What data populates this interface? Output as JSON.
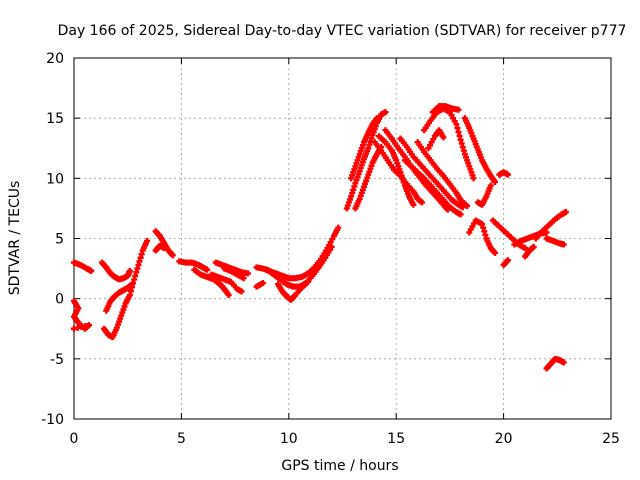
{
  "chart_data": {
    "type": "scatter",
    "title": "Day 166 of 2025, Sidereal Day-to-day VTEC variation (SDTVAR) for receiver p777",
    "xlabel": "GPS time / hours",
    "ylabel": "SDTVAR / TECUs",
    "xlim": [
      0,
      25
    ],
    "ylim": [
      -10,
      20
    ],
    "xticks": [
      0,
      5,
      10,
      15,
      20,
      25
    ],
    "yticks": [
      -10,
      -5,
      0,
      5,
      10,
      15,
      20
    ],
    "grid": true,
    "legend": "none",
    "marker": "+",
    "series": [
      {
        "name": "arc-early-upper",
        "color": "#ff0000",
        "points": [
          [
            0.0,
            3.0
          ],
          [
            0.3,
            2.8
          ],
          [
            0.6,
            2.5
          ],
          [
            0.8,
            2.3
          ]
        ]
      },
      {
        "name": "arc-early-lower",
        "color": "#ff0000",
        "points": [
          [
            0.0,
            -0.2
          ],
          [
            0.2,
            -0.8
          ],
          [
            0.0,
            -1.5
          ],
          [
            0.2,
            -2.0
          ],
          [
            0.5,
            -2.5
          ],
          [
            0.7,
            -2.2
          ],
          [
            0.0,
            -2.5
          ]
        ]
      },
      {
        "name": "arc-1",
        "color": "#ff0000",
        "points": [
          [
            1.3,
            3.0
          ],
          [
            1.5,
            2.6
          ],
          [
            1.7,
            2.1
          ],
          [
            1.9,
            1.8
          ],
          [
            2.1,
            1.6
          ],
          [
            2.3,
            1.7
          ],
          [
            2.5,
            1.9
          ],
          [
            2.6,
            2.3
          ]
        ]
      },
      {
        "name": "arc-2",
        "color": "#ff0000",
        "points": [
          [
            1.4,
            -2.5
          ],
          [
            1.6,
            -3.0
          ],
          [
            1.8,
            -3.2
          ],
          [
            2.0,
            -2.4
          ],
          [
            2.2,
            -1.4
          ],
          [
            2.4,
            -0.4
          ],
          [
            2.6,
            0.3
          ],
          [
            2.8,
            1.6
          ],
          [
            3.0,
            2.8
          ],
          [
            3.2,
            4.0
          ],
          [
            3.4,
            4.8
          ]
        ]
      },
      {
        "name": "arc-3",
        "color": "#ff0000",
        "points": [
          [
            1.5,
            -1.0
          ],
          [
            1.7,
            -0.2
          ],
          [
            1.9,
            0.2
          ],
          [
            2.1,
            0.5
          ],
          [
            2.3,
            0.7
          ],
          [
            2.5,
            0.9
          ],
          [
            2.7,
            1.2
          ]
        ]
      },
      {
        "name": "arc-4",
        "color": "#ff0000",
        "points": [
          [
            3.8,
            5.6
          ],
          [
            4.0,
            5.2
          ],
          [
            4.2,
            4.6
          ],
          [
            4.4,
            4.0
          ],
          [
            4.6,
            3.6
          ]
        ]
      },
      {
        "name": "arc-5",
        "color": "#ff0000",
        "points": [
          [
            3.8,
            4.0
          ],
          [
            4.0,
            4.4
          ],
          [
            4.2,
            4.2
          ]
        ]
      },
      {
        "name": "arc-6",
        "color": "#ff0000",
        "points": [
          [
            4.9,
            3.1
          ],
          [
            5.2,
            3.0
          ],
          [
            5.5,
            3.0
          ],
          [
            5.8,
            2.8
          ],
          [
            6.0,
            2.6
          ],
          [
            6.2,
            2.4
          ]
        ]
      },
      {
        "name": "arc-7",
        "color": "#ff0000",
        "points": [
          [
            5.6,
            2.4
          ],
          [
            5.9,
            2.0
          ],
          [
            6.2,
            1.8
          ],
          [
            6.5,
            1.6
          ],
          [
            6.8,
            1.2
          ],
          [
            7.0,
            0.8
          ],
          [
            7.2,
            0.3
          ]
        ]
      },
      {
        "name": "arc-8",
        "color": "#ff0000",
        "points": [
          [
            6.6,
            3.0
          ],
          [
            6.9,
            2.8
          ],
          [
            7.2,
            2.6
          ],
          [
            7.5,
            2.4
          ],
          [
            7.8,
            2.2
          ],
          [
            8.1,
            2.1
          ]
        ]
      },
      {
        "name": "arc-9",
        "color": "#ff0000",
        "points": [
          [
            6.4,
            2.0
          ],
          [
            6.7,
            1.8
          ],
          [
            7.0,
            1.6
          ],
          [
            7.3,
            1.4
          ],
          [
            7.6,
            0.8
          ],
          [
            7.8,
            0.6
          ]
        ]
      },
      {
        "name": "arc-10",
        "color": "#ff0000",
        "points": [
          [
            7.0,
            2.5
          ],
          [
            7.3,
            2.3
          ],
          [
            7.6,
            2.0
          ],
          [
            7.9,
            1.7
          ]
        ]
      },
      {
        "name": "arc-11",
        "color": "#ff0000",
        "points": [
          [
            8.5,
            2.6
          ],
          [
            8.8,
            2.5
          ],
          [
            9.1,
            2.3
          ],
          [
            9.4,
            2.1
          ],
          [
            9.7,
            1.9
          ],
          [
            10.0,
            1.7
          ],
          [
            10.3,
            1.7
          ],
          [
            10.6,
            1.8
          ],
          [
            10.9,
            2.1
          ],
          [
            11.2,
            2.6
          ],
          [
            11.5,
            3.3
          ],
          [
            11.8,
            4.2
          ],
          [
            12.1,
            5.2
          ],
          [
            12.3,
            5.9
          ]
        ]
      },
      {
        "name": "arc-12",
        "color": "#ff0000",
        "points": [
          [
            9.5,
            1.2
          ],
          [
            9.7,
            0.6
          ],
          [
            9.9,
            0.2
          ],
          [
            10.1,
            -0.1
          ],
          [
            10.3,
            0.3
          ],
          [
            10.6,
            0.9
          ],
          [
            10.9,
            1.4
          ]
        ]
      },
      {
        "name": "arc-13",
        "color": "#ff0000",
        "points": [
          [
            9.0,
            2.4
          ],
          [
            9.3,
            2.0
          ],
          [
            9.6,
            1.6
          ],
          [
            9.9,
            1.2
          ],
          [
            10.2,
            1.0
          ],
          [
            10.5,
            1.0
          ],
          [
            10.8,
            1.3
          ],
          [
            11.1,
            1.9
          ],
          [
            11.4,
            2.6
          ],
          [
            11.7,
            3.4
          ],
          [
            12.0,
            4.3
          ]
        ]
      },
      {
        "name": "arc-14",
        "color": "#ff0000",
        "points": [
          [
            8.5,
            1.0
          ],
          [
            8.8,
            1.3
          ]
        ]
      },
      {
        "name": "arc-15",
        "color": "#ff0000",
        "points": [
          [
            12.7,
            7.5
          ],
          [
            12.9,
            8.5
          ],
          [
            13.1,
            9.6
          ],
          [
            13.3,
            10.6
          ],
          [
            13.5,
            11.6
          ],
          [
            13.7,
            12.5
          ],
          [
            13.9,
            13.6
          ],
          [
            14.1,
            14.6
          ],
          [
            14.3,
            15.3
          ],
          [
            14.5,
            15.5
          ]
        ]
      },
      {
        "name": "arc-16",
        "color": "#ff0000",
        "points": [
          [
            12.9,
            10.0
          ],
          [
            13.1,
            11.0
          ],
          [
            13.3,
            12.0
          ],
          [
            13.5,
            13.0
          ],
          [
            13.7,
            13.8
          ],
          [
            13.9,
            14.5
          ],
          [
            14.1,
            15.0
          ]
        ]
      },
      {
        "name": "arc-17",
        "color": "#ff0000",
        "points": [
          [
            13.1,
            7.5
          ],
          [
            13.3,
            8.3
          ],
          [
            13.5,
            9.3
          ],
          [
            13.7,
            10.3
          ],
          [
            13.9,
            11.3
          ],
          [
            14.1,
            12.0
          ],
          [
            14.3,
            12.6
          ]
        ]
      },
      {
        "name": "arc-18",
        "color": "#ff0000",
        "points": [
          [
            14.0,
            13.0
          ],
          [
            14.3,
            12.3
          ],
          [
            14.6,
            11.5
          ],
          [
            14.9,
            10.7
          ],
          [
            15.2,
            10.2
          ],
          [
            15.5,
            9.5
          ],
          [
            15.8,
            8.9
          ],
          [
            16.0,
            8.3
          ],
          [
            16.2,
            8.0
          ]
        ]
      },
      {
        "name": "arc-19",
        "color": "#ff0000",
        "points": [
          [
            14.5,
            14.0
          ],
          [
            14.8,
            13.3
          ],
          [
            15.1,
            12.5
          ],
          [
            15.4,
            11.8
          ],
          [
            15.7,
            11.0
          ],
          [
            16.0,
            10.3
          ],
          [
            16.3,
            9.6
          ],
          [
            16.6,
            9.0
          ],
          [
            16.9,
            8.4
          ],
          [
            17.2,
            7.8
          ],
          [
            17.4,
            7.4
          ]
        ]
      },
      {
        "name": "arc-20",
        "color": "#ff0000",
        "points": [
          [
            14.2,
            13.5
          ],
          [
            14.5,
            13.0
          ],
          [
            14.8,
            12.3
          ],
          [
            15.0,
            11.5
          ],
          [
            15.2,
            10.5
          ],
          [
            15.4,
            9.4
          ],
          [
            15.6,
            8.5
          ],
          [
            15.8,
            7.8
          ]
        ]
      },
      {
        "name": "arc-21",
        "color": "#ff0000",
        "points": [
          [
            15.2,
            13.3
          ],
          [
            15.5,
            12.6
          ],
          [
            15.8,
            11.8
          ],
          [
            16.1,
            11.2
          ],
          [
            16.4,
            10.6
          ],
          [
            16.7,
            10.0
          ],
          [
            17.0,
            9.4
          ],
          [
            17.3,
            8.8
          ],
          [
            17.6,
            8.2
          ],
          [
            17.9,
            7.8
          ],
          [
            18.1,
            7.6
          ]
        ]
      },
      {
        "name": "arc-22",
        "color": "#ff0000",
        "points": [
          [
            15.4,
            11.5
          ],
          [
            15.7,
            11.0
          ],
          [
            16.0,
            10.5
          ],
          [
            16.3,
            10.0
          ],
          [
            16.6,
            9.4
          ],
          [
            16.9,
            8.8
          ],
          [
            17.2,
            8.2
          ],
          [
            17.5,
            7.6
          ],
          [
            17.8,
            7.2
          ],
          [
            18.0,
            7.0
          ]
        ]
      },
      {
        "name": "arc-23",
        "color": "#ff0000",
        "points": [
          [
            16.0,
            13.0
          ],
          [
            16.3,
            12.2
          ],
          [
            16.6,
            11.5
          ],
          [
            16.9,
            10.8
          ],
          [
            17.2,
            10.2
          ],
          [
            17.5,
            9.5
          ],
          [
            17.8,
            8.8
          ],
          [
            18.0,
            8.2
          ],
          [
            18.3,
            7.7
          ]
        ]
      },
      {
        "name": "arc-24",
        "color": "#ff0000",
        "points": [
          [
            16.7,
            15.5
          ],
          [
            17.0,
            16.0
          ],
          [
            17.3,
            16.0
          ],
          [
            17.6,
            15.8
          ],
          [
            17.9,
            15.7
          ]
        ]
      },
      {
        "name": "arc-25",
        "color": "#ff0000",
        "points": [
          [
            16.3,
            14.0
          ],
          [
            16.6,
            14.8
          ],
          [
            16.9,
            15.5
          ],
          [
            17.2,
            15.8
          ],
          [
            17.5,
            15.5
          ],
          [
            17.8,
            14.5
          ],
          [
            18.0,
            13.2
          ],
          [
            18.2,
            12.0
          ],
          [
            18.4,
            11.0
          ],
          [
            18.6,
            10.0
          ]
        ]
      },
      {
        "name": "arc-26",
        "color": "#ff0000",
        "points": [
          [
            16.5,
            12.5
          ],
          [
            16.8,
            13.5
          ],
          [
            17.0,
            14.0
          ],
          [
            17.2,
            13.4
          ]
        ]
      },
      {
        "name": "arc-27",
        "color": "#ff0000",
        "points": [
          [
            18.2,
            15.0
          ],
          [
            18.4,
            14.2
          ],
          [
            18.6,
            13.3
          ],
          [
            18.8,
            12.4
          ],
          [
            19.0,
            11.5
          ],
          [
            19.2,
            10.8
          ],
          [
            19.4,
            10.2
          ],
          [
            19.6,
            9.7
          ]
        ]
      },
      {
        "name": "arc-28",
        "color": "#ff0000",
        "points": [
          [
            18.8,
            8.0
          ],
          [
            19.0,
            7.8
          ],
          [
            19.2,
            8.5
          ],
          [
            19.4,
            9.4
          ]
        ]
      },
      {
        "name": "arc-29",
        "color": "#ff0000",
        "points": [
          [
            18.4,
            5.5
          ],
          [
            18.7,
            6.5
          ],
          [
            19.0,
            6.2
          ],
          [
            19.2,
            5.0
          ],
          [
            19.4,
            4.2
          ],
          [
            19.6,
            3.8
          ]
        ]
      },
      {
        "name": "arc-30",
        "color": "#ff0000",
        "points": [
          [
            19.8,
            10.3
          ],
          [
            20.0,
            10.5
          ],
          [
            20.2,
            10.3
          ]
        ]
      },
      {
        "name": "arc-31",
        "color": "#ff0000",
        "points": [
          [
            19.5,
            6.5
          ],
          [
            19.8,
            6.0
          ],
          [
            20.1,
            5.5
          ],
          [
            20.4,
            5.0
          ],
          [
            20.7,
            4.5
          ],
          [
            21.0,
            4.2
          ]
        ]
      },
      {
        "name": "arc-32",
        "color": "#ff0000",
        "points": [
          [
            20.0,
            2.8
          ],
          [
            20.2,
            3.2
          ]
        ]
      },
      {
        "name": "arc-33",
        "color": "#ff0000",
        "points": [
          [
            20.5,
            4.5
          ],
          [
            20.8,
            4.8
          ],
          [
            21.1,
            5.0
          ],
          [
            21.4,
            5.2
          ],
          [
            21.7,
            5.4
          ],
          [
            22.0,
            5.5
          ]
        ]
      },
      {
        "name": "arc-34",
        "color": "#ff0000",
        "points": [
          [
            21.0,
            3.5
          ],
          [
            21.2,
            4.0
          ],
          [
            21.4,
            4.3
          ]
        ]
      },
      {
        "name": "arc-35",
        "color": "#ff0000",
        "points": [
          [
            21.5,
            5.0
          ],
          [
            21.8,
            5.6
          ],
          [
            22.1,
            6.1
          ],
          [
            22.4,
            6.6
          ],
          [
            22.7,
            7.0
          ],
          [
            22.9,
            7.2
          ]
        ]
      },
      {
        "name": "arc-36",
        "color": "#ff0000",
        "points": [
          [
            22.0,
            5.0
          ],
          [
            22.3,
            4.8
          ],
          [
            22.6,
            4.6
          ],
          [
            22.8,
            4.5
          ]
        ]
      },
      {
        "name": "arc-37",
        "color": "#ff0000",
        "points": [
          [
            22.0,
            -5.8
          ],
          [
            22.2,
            -5.4
          ],
          [
            22.4,
            -5.0
          ],
          [
            22.6,
            -5.1
          ],
          [
            22.8,
            -5.3
          ]
        ]
      }
    ]
  }
}
